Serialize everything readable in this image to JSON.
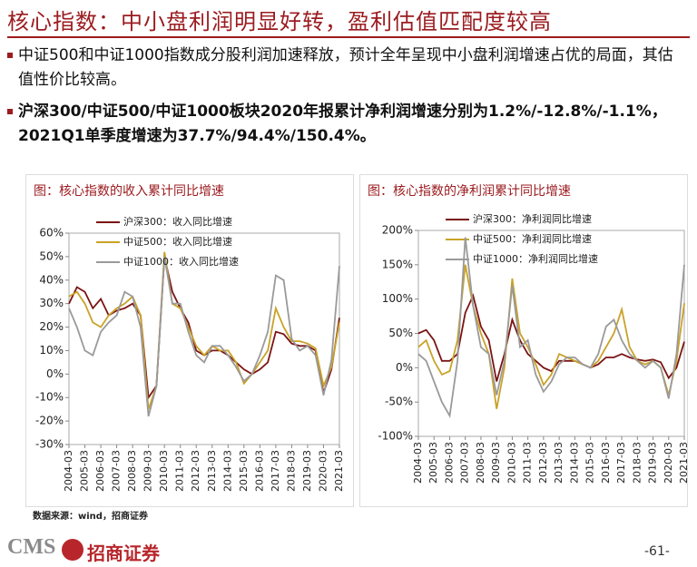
{
  "header": {
    "title": "核心指数：中小盘利润明显好转，盈利估值匹配度较高"
  },
  "paragraphs": [
    "中证500和中证1000指数成分股利润加速释放，预计全年呈现中小盘利润增速占优的局面，其估值性价比较高。",
    "沪深300/中证500/中证1000板块2020年报累计净利润增速分别为1.2%/-12.8%/-1.1%，2021Q1单季度增速为37.7%/94.4%/150.4%。"
  ],
  "chart_data": [
    {
      "type": "line",
      "title": "图：核心指数的收入累计同比增速",
      "categories": [
        "2004-03",
        null,
        "2005-03",
        null,
        "2006-03",
        null,
        "2007-03",
        null,
        "2008-03",
        null,
        "2009-03",
        null,
        "2010-03",
        null,
        "2011-03",
        null,
        "2012-03",
        null,
        "2013-03",
        null,
        "2014-03",
        null,
        "2015-03",
        null,
        "2016-03",
        null,
        "2017-03",
        null,
        "2018-03",
        null,
        "2019-03",
        null,
        "2020-03",
        null,
        "2021-03"
      ],
      "ylim": [
        -30,
        60
      ],
      "yticks": [
        {
          "value": -30,
          "label": "-30%"
        },
        {
          "value": -20,
          "label": "-20%"
        },
        {
          "value": -10,
          "label": "-10%"
        },
        {
          "value": 0,
          "label": "0%"
        },
        {
          "value": 10,
          "label": "10%"
        },
        {
          "value": 20,
          "label": "20%"
        },
        {
          "value": 30,
          "label": "30%"
        },
        {
          "value": 40,
          "label": "40%"
        },
        {
          "value": 50,
          "label": "50%"
        },
        {
          "value": 60,
          "label": "60%"
        }
      ],
      "series": [
        {
          "name": "沪深300：收入同比增速",
          "color": "#7b1414",
          "values": [
            30,
            37,
            35,
            28,
            32,
            25,
            27,
            28,
            30,
            25,
            -10,
            -5,
            50,
            35,
            28,
            22,
            10,
            8,
            10,
            10,
            8,
            5,
            2,
            0,
            2,
            5,
            18,
            17,
            13,
            12,
            12,
            10,
            -8,
            2,
            24
          ]
        },
        {
          "name": "中证500：收入同比增速",
          "color": "#c9a227",
          "values": [
            33,
            35,
            30,
            22,
            20,
            25,
            28,
            30,
            33,
            25,
            -15,
            -5,
            52,
            30,
            28,
            20,
            12,
            8,
            12,
            10,
            10,
            5,
            -4,
            0,
            5,
            10,
            28,
            20,
            14,
            14,
            13,
            11,
            -5,
            3,
            22
          ]
        },
        {
          "name": "中证1000：收入同比增速",
          "color": "#9a9a9a",
          "values": [
            28,
            20,
            10,
            8,
            18,
            22,
            25,
            35,
            33,
            20,
            -18,
            -5,
            50,
            30,
            30,
            18,
            8,
            5,
            12,
            12,
            8,
            3,
            -3,
            0,
            8,
            18,
            42,
            40,
            15,
            10,
            12,
            8,
            -9,
            6,
            46
          ]
        }
      ]
    },
    {
      "type": "line",
      "title": "图：核心指数的净利润累计同比增速",
      "categories": [
        "2004-03",
        null,
        "2005-03",
        null,
        "2006-03",
        null,
        "2007-03",
        null,
        "2008-03",
        null,
        "2009-03",
        null,
        "2010-03",
        null,
        "2011-03",
        null,
        "2012-03",
        null,
        "2013-03",
        null,
        "2014-03",
        null,
        "2015-03",
        null,
        "2016-03",
        null,
        "2017-03",
        null,
        "2018-03",
        null,
        "2019-03",
        null,
        "2020-03",
        null,
        "2021-03"
      ],
      "ylim": [
        -100,
        200
      ],
      "yticks": [
        {
          "value": -100,
          "label": "-100%"
        },
        {
          "value": -50,
          "label": "-50%"
        },
        {
          "value": 0,
          "label": "0%"
        },
        {
          "value": 50,
          "label": "50%"
        },
        {
          "value": 100,
          "label": "100%"
        },
        {
          "value": 150,
          "label": "150%"
        },
        {
          "value": 200,
          "label": "200%"
        }
      ],
      "series": [
        {
          "name": "沪深300：净利润同比增速",
          "color": "#7b1414",
          "values": [
            50,
            55,
            40,
            10,
            10,
            20,
            80,
            105,
            60,
            40,
            -20,
            20,
            70,
            40,
            20,
            10,
            0,
            -5,
            10,
            10,
            10,
            5,
            0,
            5,
            15,
            15,
            20,
            15,
            12,
            10,
            12,
            8,
            -15,
            0,
            38
          ]
        },
        {
          "name": "中证500：净利润同比增速",
          "color": "#c9a227",
          "values": [
            30,
            40,
            10,
            -10,
            -5,
            40,
            150,
            90,
            50,
            20,
            -60,
            0,
            130,
            50,
            30,
            5,
            -25,
            -10,
            20,
            15,
            10,
            5,
            0,
            10,
            30,
            50,
            85,
            30,
            10,
            5,
            10,
            0,
            -40,
            10,
            94
          ]
        },
        {
          "name": "中证1000：净利润同比增速",
          "color": "#9a9a9a",
          "values": [
            20,
            10,
            -20,
            -50,
            -70,
            10,
            190,
            90,
            30,
            20,
            -40,
            10,
            120,
            30,
            40,
            -10,
            -35,
            -20,
            5,
            15,
            15,
            5,
            0,
            20,
            60,
            70,
            40,
            20,
            10,
            0,
            10,
            0,
            -45,
            20,
            150
          ]
        }
      ]
    }
  ],
  "source": "数据来源：wind，招商证券",
  "footer": {
    "brand": "CMS",
    "logo": "招商证券",
    "page": "-61-"
  }
}
